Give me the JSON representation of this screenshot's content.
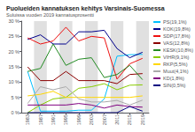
{
  "chart_data": {
    "type": "line",
    "title": "Puolueiden kannatuksen kehitys Varsinais-Suomessa",
    "subtitle": "Suluissa vuoden 2019 kannatusprosentti",
    "x": [
      1983,
      1987,
      1991,
      1995,
      1999,
      2003,
      2007,
      2011,
      2015,
      2019
    ],
    "series": [
      {
        "name": "PS(19,1%)",
        "color": "#00BFFF",
        "values": [
          13.5,
          0.5,
          0.5,
          0.5,
          0.8,
          0.8,
          4.5,
          18.5,
          19.0,
          19.1
        ]
      },
      {
        "name": "KOK(19,8%)",
        "color": "#00008B",
        "values": [
          24.0,
          25.5,
          22.5,
          22.5,
          26.5,
          26.5,
          27.0,
          21.0,
          18.0,
          19.8
        ]
      },
      {
        "name": "SDP(17,8%)",
        "color": "#EE1111",
        "values": [
          24.5,
          22.5,
          23.5,
          28.0,
          23.5,
          25.0,
          24.5,
          11.0,
          16.0,
          17.8
        ]
      },
      {
        "name": "VAS(12,8%)",
        "color": "#8B0000",
        "values": [
          15.0,
          10.5,
          10.5,
          13.5,
          10.5,
          10.5,
          10.5,
          9.5,
          12.5,
          12.8
        ]
      },
      {
        "name": "KESK(10,8%)",
        "color": "#228B22",
        "values": [
          13.5,
          14.5,
          22.5,
          15.5,
          17.5,
          18.0,
          11.5,
          12.5,
          15.5,
          10.8
        ]
      },
      {
        "name": "VIHR(9,1%)",
        "color": "#88CC00",
        "values": [
          0.0,
          2.5,
          4.5,
          5.0,
          8.0,
          8.5,
          9.5,
          7.5,
          9.0,
          9.1
        ]
      },
      {
        "name": "RKP(5,5%)",
        "color": "#FFD700",
        "values": [
          5.5,
          6.0,
          7.0,
          5.0,
          5.0,
          5.0,
          5.0,
          5.0,
          5.0,
          5.5
        ]
      },
      {
        "name": "Muut(4,1%)",
        "color": "#AAAAAA",
        "values": [
          3.0,
          8.5,
          7.5,
          8.5,
          4.5,
          3.5,
          3.5,
          4.0,
          2.5,
          4.1
        ]
      },
      {
        "name": "KD(1,8%)",
        "color": "#800080",
        "values": [
          2.5,
          2.5,
          2.5,
          2.5,
          3.0,
          2.5,
          1.5,
          2.5,
          2.0,
          1.8
        ]
      },
      {
        "name": "SIN(0,5%)",
        "color": "#000080",
        "values": [
          0.0,
          0.0,
          0.0,
          0.0,
          0.0,
          0.0,
          0.0,
          0.0,
          2.0,
          0.5
        ]
      }
    ],
    "xlim": [
      1981,
      2021
    ],
    "xticks": [
      1983,
      1987,
      1991,
      1995,
      1999,
      2003,
      2007,
      2011,
      2015,
      2019
    ],
    "ylim": [
      0,
      30
    ],
    "yticks": [
      {
        "value": 0,
        "label": "0 %"
      },
      {
        "value": 5,
        "label": "5 %"
      },
      {
        "value": 10,
        "label": "10 %"
      },
      {
        "value": 15,
        "label": "15 %"
      },
      {
        "value": 20,
        "label": "20 %"
      },
      {
        "value": 25,
        "label": "25 %"
      },
      {
        "value": 30,
        "label": "30 %"
      }
    ],
    "shaded_ranges": [
      [
        1985,
        1989
      ],
      [
        1993,
        1997
      ],
      [
        2001,
        2005
      ],
      [
        2009,
        2013
      ],
      [
        2017,
        2021
      ]
    ],
    "shade_color": "#E0E0E0",
    "grid": false,
    "legend": "right"
  }
}
